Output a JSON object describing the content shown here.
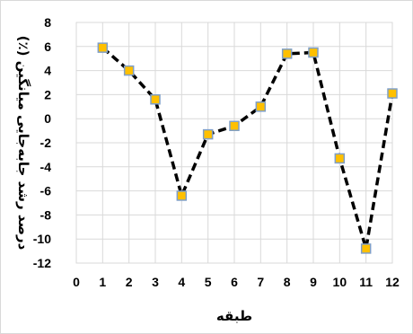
{
  "chart_data": {
    "type": "line",
    "title": "",
    "xlabel": "طبقه",
    "ylabel": "درصد رشد جابه‌جایی میانگین (٪)",
    "xlim": [
      0,
      12
    ],
    "ylim": [
      -12,
      8
    ],
    "xticks": [
      0,
      1,
      2,
      3,
      4,
      5,
      6,
      7,
      8,
      9,
      10,
      11,
      12
    ],
    "yticks": [
      -12,
      -10,
      -8,
      -6,
      -4,
      -2,
      0,
      2,
      4,
      6,
      8
    ],
    "grid": true,
    "legend": "none",
    "series": [
      {
        "x": [
          1,
          2,
          3,
          4,
          5,
          6,
          7,
          8,
          9,
          10,
          11,
          12
        ],
        "values": [
          5.9,
          4.0,
          1.6,
          -6.4,
          -1.3,
          -0.6,
          1.0,
          5.4,
          5.5,
          -3.3,
          -10.8,
          2.1
        ],
        "line_style": "dashed",
        "line_color": "#000000",
        "marker": "square",
        "marker_color": "#FFC000",
        "marker_edge_color": "#7F9FC8"
      }
    ]
  }
}
